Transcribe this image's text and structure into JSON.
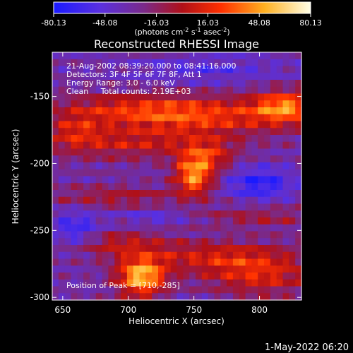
{
  "chart_data": {
    "type": "heatmap",
    "title": "Reconstructed RHESSI Image",
    "colorbar": {
      "ticks": [
        "-80.13",
        "-48.08",
        "-16.03",
        "16.03",
        "48.08",
        "80.13"
      ],
      "unit_main": "(photons cm",
      "unit_sup1": "-2",
      "unit_mid": " s",
      "unit_sup2": "-1",
      "unit_mid2": " asec",
      "unit_sup3": "-2",
      "unit_end": ")",
      "range": [
        -80.13,
        80.13
      ],
      "colormap": [
        "#1a1aff",
        "#7030d8",
        "#7a2a7a",
        "#c01010",
        "#ff6a00",
        "#ffd040",
        "#ffffe0"
      ]
    },
    "annotations": [
      "21-Aug-2002 08:39:20.000 to 08:41:16.000",
      "Detectors: 3F 4F 5F 6F 7F 8F, Att 1",
      "Energy Range: 3.0 - 6.0 keV",
      "Clean     Total counts: 2.19E+03"
    ],
    "peak_label": "Position of Peak = [710,-285]",
    "xlabel": "Heliocentric X (arcsec)",
    "ylabel": "Heliocentric Y (arcsec)",
    "xlim": [
      642,
      832
    ],
    "ylim": [
      -302,
      -117
    ],
    "xticks": [
      650,
      700,
      750,
      800
    ],
    "yticks": [
      -150,
      -200,
      -250,
      -300
    ],
    "xtick_labels": [
      "650",
      "700",
      "750",
      "800"
    ],
    "ytick_labels": [
      "-150",
      "-200",
      "-250",
      "-300"
    ],
    "grid": false,
    "peak": [
      710,
      -285
    ],
    "footer_date": "1-May-2022 06:20"
  }
}
